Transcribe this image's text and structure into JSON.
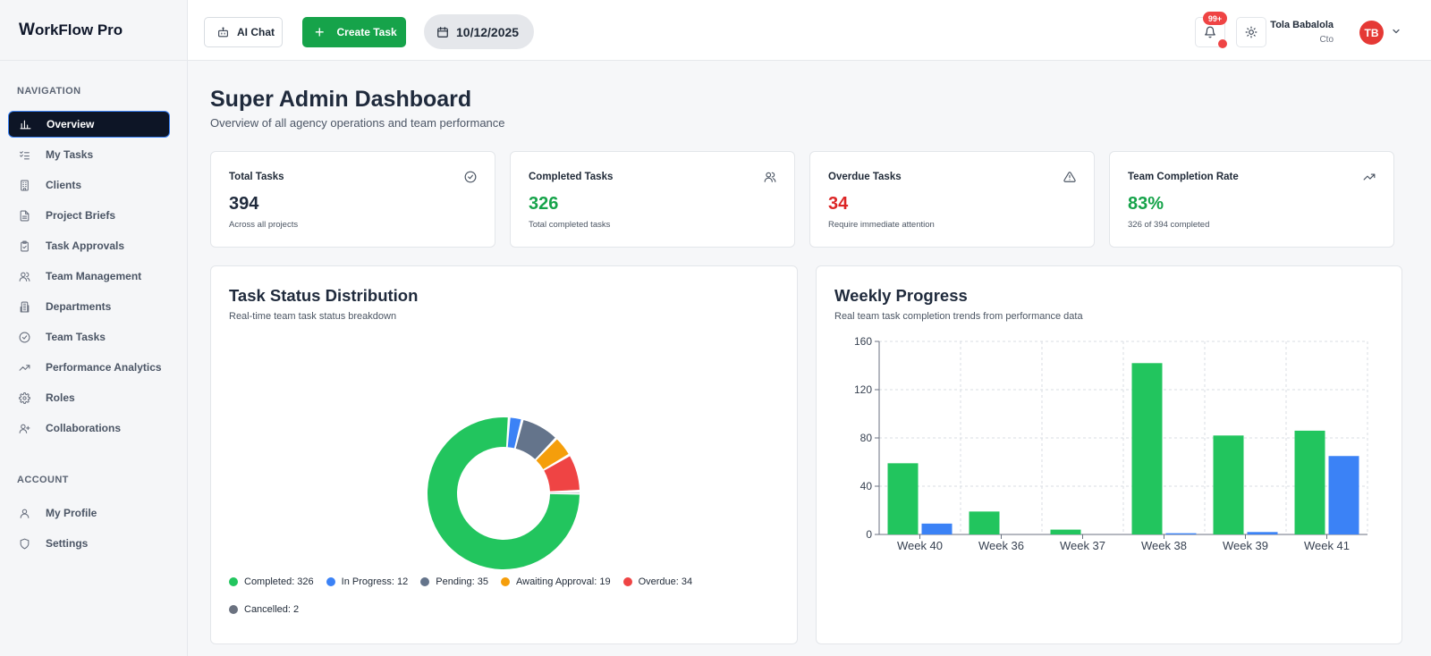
{
  "app": {
    "logo_w": "W",
    "logo_rest": "orkFlow Pro"
  },
  "sidebar": {
    "nav_label": "NAVIGATION",
    "items": [
      {
        "label": "Overview",
        "icon": "bar-chart-icon",
        "active": true
      },
      {
        "label": "My Tasks",
        "icon": "list-checks-icon"
      },
      {
        "label": "Clients",
        "icon": "building-icon"
      },
      {
        "label": "Project Briefs",
        "icon": "file-text-icon"
      },
      {
        "label": "Task Approvals",
        "icon": "clipboard-check-icon"
      },
      {
        "label": "Team Management",
        "icon": "users-icon"
      },
      {
        "label": "Departments",
        "icon": "building-2-icon"
      },
      {
        "label": "Team Tasks",
        "icon": "check-circle-icon"
      },
      {
        "label": "Performance Analytics",
        "icon": "trending-up-icon"
      },
      {
        "label": "Roles",
        "icon": "gear-icon"
      },
      {
        "label": "Collaborations",
        "icon": "user-plus-icon"
      }
    ],
    "account_label": "ACCOUNT",
    "account_items": [
      {
        "label": "My Profile",
        "icon": "user-icon"
      },
      {
        "label": "Settings",
        "icon": "shield-icon"
      }
    ]
  },
  "topbar": {
    "ai_chat_label": "AI Chat",
    "create_task_label": "Create Task",
    "date": "10/12/2025",
    "notification_count": "99+",
    "user_name": "Tola Babalola",
    "user_role": "Cto",
    "avatar_initials": "TB"
  },
  "page": {
    "title": "Super Admin Dashboard",
    "subtitle": "Overview of all agency operations and team performance"
  },
  "stats": [
    {
      "title": "Total Tasks",
      "value": "394",
      "note": "Across all projects",
      "icon": "check-circle-icon",
      "tone": "default"
    },
    {
      "title": "Completed Tasks",
      "value": "326",
      "note": "Total completed tasks",
      "icon": "users-icon",
      "tone": "green"
    },
    {
      "title": "Overdue Tasks",
      "value": "34",
      "note": "Require immediate attention",
      "icon": "alert-triangle-icon",
      "tone": "red"
    },
    {
      "title": "Team Completion Rate",
      "value": "83%",
      "note": "326 of 394 completed",
      "icon": "trending-up-icon",
      "tone": "green"
    }
  ],
  "status_panel": {
    "title": "Task Status Distribution",
    "subtitle": "Real-time team task status breakdown"
  },
  "weekly_panel": {
    "title": "Weekly Progress",
    "subtitle": "Real team task completion trends from performance data"
  },
  "chart_data": [
    {
      "type": "pie",
      "donut": true,
      "legend_placement": "bottom",
      "slices": [
        {
          "label": "Completed",
          "value": 326,
          "color": "#22c55e",
          "legend": "Completed: 326"
        },
        {
          "label": "In Progress",
          "value": 12,
          "color": "#3b82f6",
          "legend": "In Progress: 12"
        },
        {
          "label": "Pending",
          "value": 35,
          "color": "#64748b",
          "legend": "Pending: 35"
        },
        {
          "label": "Awaiting Approval",
          "value": 19,
          "color": "#f59e0b",
          "legend": "Awaiting Approval: 19"
        },
        {
          "label": "Overdue",
          "value": 34,
          "color": "#ef4444",
          "legend": "Overdue: 34"
        },
        {
          "label": "Cancelled",
          "value": 2,
          "color": "#6b7280",
          "legend": "Cancelled: 2"
        }
      ]
    },
    {
      "type": "bar",
      "categories": [
        "Week 40",
        "Week 36",
        "Week 37",
        "Week 38",
        "Week 39",
        "Week 41"
      ],
      "series": [
        {
          "values": [
            59,
            19,
            4,
            142,
            82,
            86
          ],
          "color": "#22c55e"
        },
        {
          "values": [
            9,
            0,
            0,
            1,
            2,
            65
          ],
          "color": "#3b82f6"
        }
      ],
      "ylim": [
        0,
        160
      ],
      "yticks": [
        0,
        40,
        80,
        120,
        160
      ],
      "grid": true
    }
  ]
}
